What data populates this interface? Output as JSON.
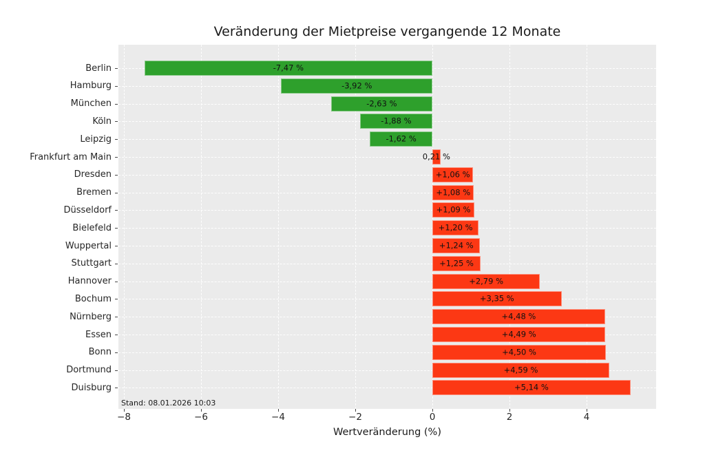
{
  "chart_data": {
    "type": "bar",
    "orientation": "horizontal",
    "title": "Veränderung der Mietpreise vergangende 12 Monate",
    "xlabel": "Wertveränderung (%)",
    "annotation": "Stand: 08.01.2026 10:03",
    "categories": [
      "Berlin",
      "Hamburg",
      "München",
      "Köln",
      "Leipzig",
      "Frankfurt am Main",
      "Dresden",
      "Bremen",
      "Düsseldorf",
      "Bielefeld",
      "Wuppertal",
      "Stuttgart",
      "Hannover",
      "Bochum",
      "Nürnberg",
      "Essen",
      "Bonn",
      "Dortmund",
      "Duisburg"
    ],
    "values": [
      -7.47,
      -3.92,
      -2.63,
      -1.88,
      -1.62,
      0.21,
      1.06,
      1.08,
      1.09,
      1.2,
      1.24,
      1.25,
      2.79,
      3.35,
      4.48,
      4.49,
      4.5,
      4.59,
      5.14
    ],
    "bar_labels": [
      "-7,47 %",
      "-3,92 %",
      "-2,63 %",
      "-1,88 %",
      "-1,62 %",
      "0,21 %",
      "+1,06 %",
      "+1,08 %",
      "+1,09 %",
      "+1,20 %",
      "+1,24 %",
      "+1,25 %",
      "+2,79 %",
      "+3,35 %",
      "+4,48 %",
      "+4,49 %",
      "+4,50 %",
      "+4,59 %",
      "+5,14 %"
    ],
    "x_ticks": [
      -8,
      -6,
      -4,
      -2,
      0,
      2,
      4
    ],
    "x_tick_labels": [
      "−8",
      "−6",
      "−4",
      "−2",
      "0",
      "2",
      "4"
    ],
    "xlim": [
      -8.14,
      5.8
    ],
    "grid": true,
    "legend": false,
    "colors": {
      "negative_bar": "#2ea02c",
      "positive_bar": "#fc3814",
      "plot_background": "#ebebeb",
      "grid_line": "#ffffff",
      "figure_background": "#ffffff"
    }
  }
}
